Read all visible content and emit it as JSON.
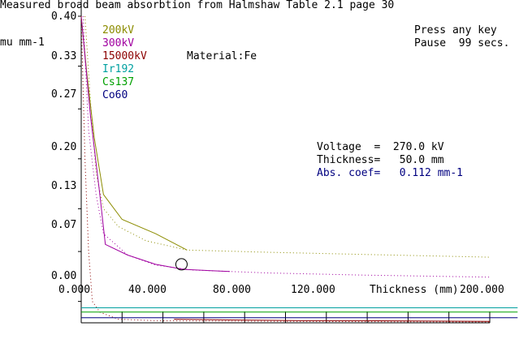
{
  "header": {
    "title": "Measured broad beam absorbtion from Halmshaw Table 2.1 page 30",
    "ylabel": "mu mm-1",
    "xlabel": "Thickness (mm)",
    "press_key": "Press any key",
    "pause": "Pause  99 secs.",
    "material": "Material:Fe"
  },
  "legend": [
    {
      "label": "200kV",
      "color": "#8c8c00"
    },
    {
      "label": "300kV",
      "color": "#a000a0"
    },
    {
      "label": "15000kV",
      "color": "#8c0000"
    },
    {
      "label": "Ir192",
      "color": "#00a0a0"
    },
    {
      "label": "Cs137",
      "color": "#00a000"
    },
    {
      "label": "Co60",
      "color": "#000080"
    }
  ],
  "readout": {
    "voltage": "Voltage  =  270.0 kV",
    "thickness": "Thickness=   50.0 mm",
    "abs_coef": "Abs. coef=   0.112 mm-1",
    "abs_color": "#000080"
  },
  "chart_data": {
    "type": "line",
    "ylabel": "mu mm-1",
    "xlabel": "Thickness (mm)",
    "xlim": [
      0,
      220
    ],
    "ylim": [
      -0.03,
      0.4
    ],
    "y_ticks": [
      {
        "value": 0.4,
        "label": "0.40"
      },
      {
        "value": 0.33,
        "label": "0.33"
      },
      {
        "value": 0.27,
        "label": "0.27"
      },
      {
        "value": 0.2,
        "label": "0.20"
      },
      {
        "value": 0.13,
        "label": "0.13"
      },
      {
        "value": 0.07,
        "label": "0.07"
      },
      {
        "value": 0.0,
        "label": "0.00"
      }
    ],
    "x_ticks": [
      {
        "value": 0,
        "label": "0.000"
      },
      {
        "value": 40,
        "label": "40.000"
      },
      {
        "value": 80,
        "label": "80.000"
      },
      {
        "value": 120,
        "label": "120.000"
      },
      {
        "value": 200,
        "label": "200.000"
      }
    ],
    "series": [
      {
        "name": "200kV",
        "style": "solid",
        "color": "#8c8c00",
        "x": [
          0,
          3,
          7,
          12,
          22,
          40,
          57
        ],
        "y": [
          0.4,
          0.32,
          0.23,
          0.15,
          0.115,
          0.095,
          0.072
        ]
      },
      {
        "name": "200kV",
        "style": "dotted",
        "color": "#8c8c00",
        "x": [
          2,
          5,
          8,
          12,
          20,
          35,
          57,
          100,
          150,
          220
        ],
        "y": [
          0.4,
          0.28,
          0.18,
          0.13,
          0.105,
          0.085,
          0.072,
          0.069,
          0.066,
          0.062
        ]
      },
      {
        "name": "300kV",
        "style": "solid",
        "color": "#a000a0",
        "x": [
          0,
          5,
          10,
          13,
          25,
          40,
          55,
          70,
          80
        ],
        "y": [
          0.4,
          0.26,
          0.15,
          0.08,
          0.065,
          0.052,
          0.045,
          0.043,
          0.042
        ]
      },
      {
        "name": "300kV",
        "style": "dotted",
        "color": "#a000a0",
        "x": [
          1,
          4,
          8,
          12,
          25,
          40,
          60,
          100,
          150,
          220
        ],
        "y": [
          0.4,
          0.24,
          0.15,
          0.095,
          0.065,
          0.051,
          0.044,
          0.04,
          0.037,
          0.034
        ]
      },
      {
        "name": "15000kV",
        "style": "dotted",
        "color": "#8c0000",
        "x": [
          0,
          2,
          4,
          6,
          10,
          20,
          40,
          100,
          220
        ],
        "y": [
          0.4,
          0.2,
          0.07,
          0.0,
          -0.015,
          -0.025,
          -0.027,
          -0.028,
          -0.029
        ]
      },
      {
        "name": "15000kV",
        "style": "solid",
        "color": "#8c0000",
        "x": [
          50,
          80,
          120,
          150,
          220
        ],
        "y": [
          -0.025,
          -0.026,
          -0.027,
          -0.027,
          -0.028
        ]
      },
      {
        "name": "Ir192",
        "style": "solid",
        "color": "#00a0a0",
        "x": [
          0,
          235
        ],
        "y": [
          -0.009,
          -0.009
        ]
      },
      {
        "name": "Cs137",
        "style": "solid",
        "color": "#00a000",
        "x": [
          0,
          235
        ],
        "y": [
          -0.015,
          -0.015
        ]
      },
      {
        "name": "Co60",
        "style": "solid",
        "color": "#000080",
        "x": [
          0,
          235
        ],
        "y": [
          -0.023,
          -0.023
        ]
      }
    ],
    "marker": {
      "x": 54,
      "y": 0.052
    }
  }
}
